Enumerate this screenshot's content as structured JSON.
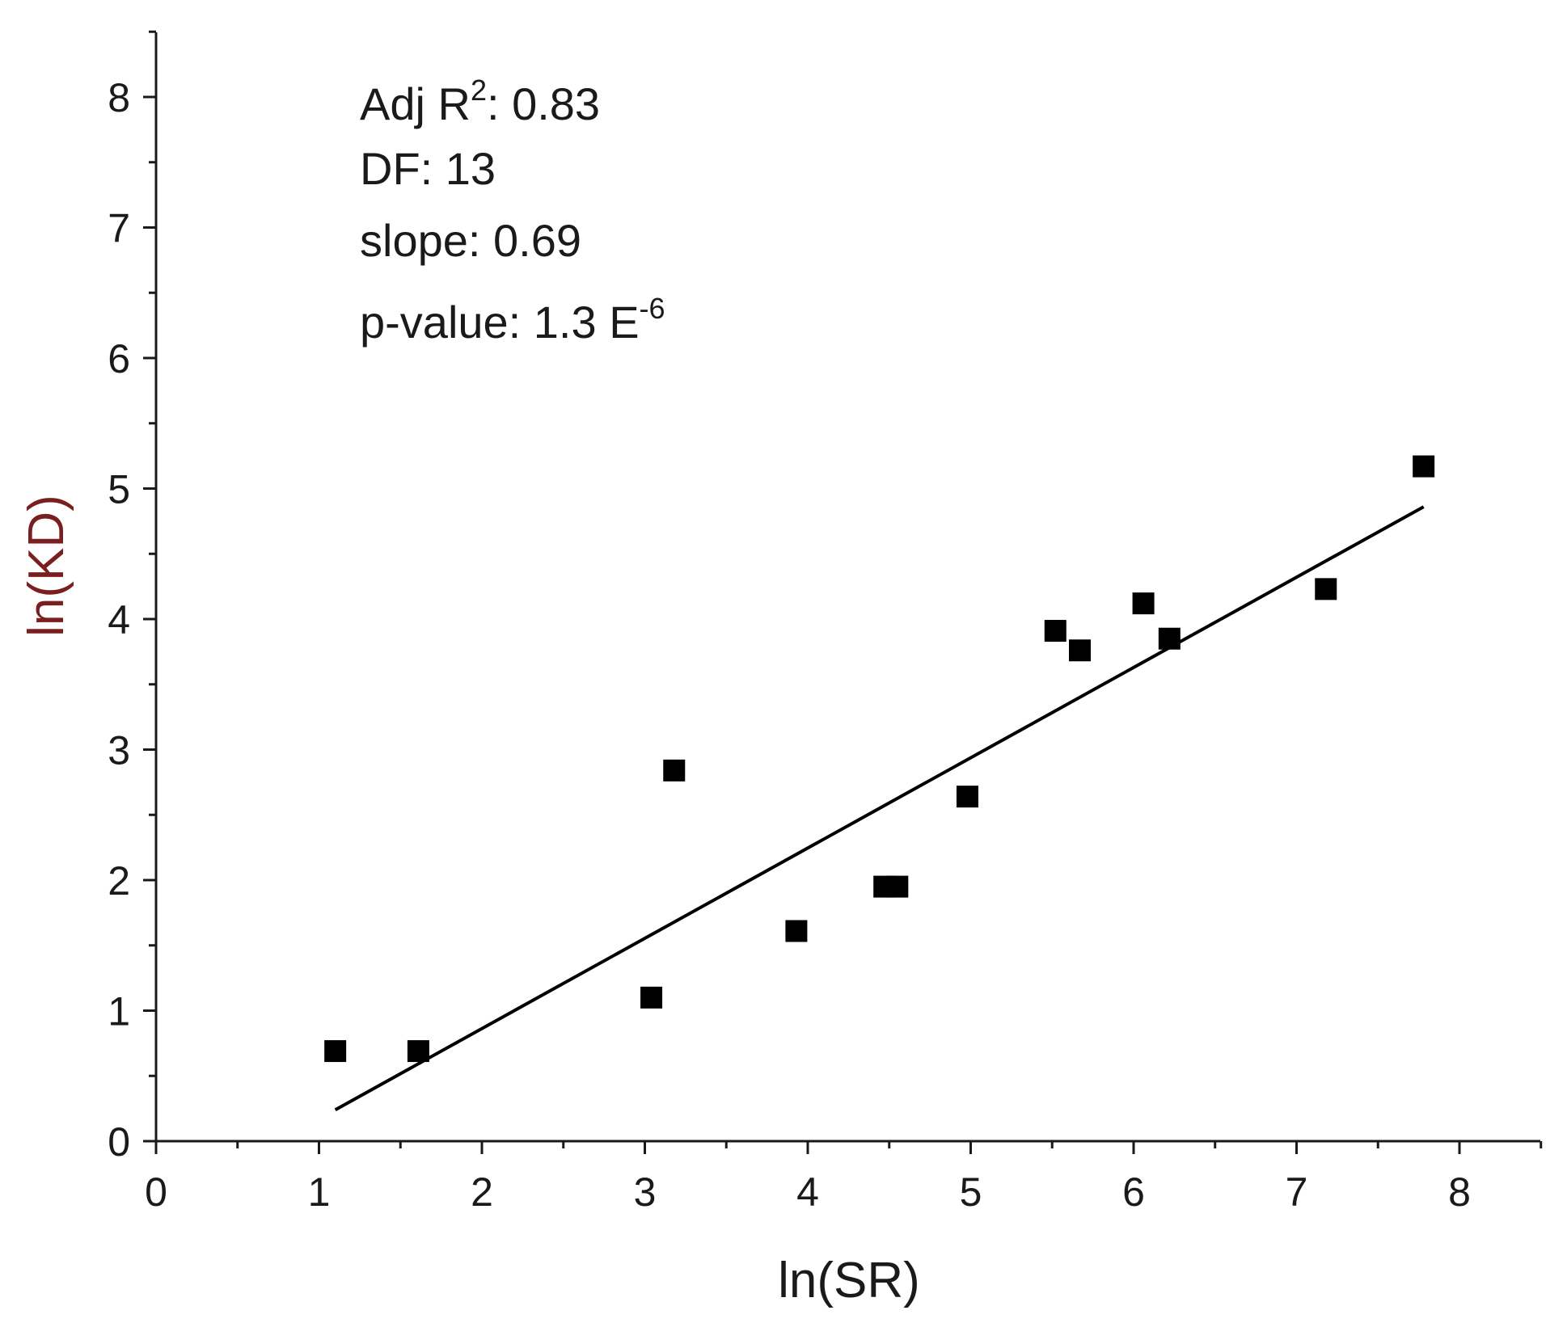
{
  "chart_data": {
    "type": "scatter",
    "title": "",
    "xlabel": "ln(SR)",
    "ylabel": "ln(KD)",
    "xlim": [
      0,
      8.5
    ],
    "ylim": [
      0,
      8.5
    ],
    "x_ticks": [
      0,
      1,
      2,
      3,
      4,
      5,
      6,
      7,
      8
    ],
    "y_ticks": [
      0,
      1,
      2,
      3,
      4,
      5,
      6,
      7,
      8
    ],
    "x_tick_labels": [
      "0",
      "1",
      "2",
      "3",
      "4",
      "5",
      "6",
      "7",
      "8"
    ],
    "y_tick_labels": [
      "0",
      "1",
      "2",
      "3",
      "4",
      "5",
      "6",
      "7",
      "8"
    ],
    "grid": false,
    "marker": "square",
    "series": [
      {
        "name": "data",
        "points": [
          {
            "x": 1.1,
            "y": 0.69
          },
          {
            "x": 1.61,
            "y": 0.69
          },
          {
            "x": 3.04,
            "y": 1.1
          },
          {
            "x": 3.18,
            "y": 2.84
          },
          {
            "x": 3.93,
            "y": 1.61
          },
          {
            "x": 4.47,
            "y": 1.95
          },
          {
            "x": 4.55,
            "y": 1.95
          },
          {
            "x": 4.98,
            "y": 2.64
          },
          {
            "x": 5.52,
            "y": 3.91
          },
          {
            "x": 5.67,
            "y": 3.76
          },
          {
            "x": 6.06,
            "y": 4.12
          },
          {
            "x": 6.22,
            "y": 3.85
          },
          {
            "x": 7.18,
            "y": 4.23
          },
          {
            "x": 7.78,
            "y": 5.17
          }
        ]
      }
    ],
    "fit_line": {
      "x_start": 1.1,
      "y_start": 0.24,
      "x_end": 7.78,
      "y_end": 4.86
    },
    "annotations": {
      "adj_r2_label": "Adj R",
      "adj_r2_sup": "2",
      "adj_r2_value": ": 0.83",
      "df": "DF: 13",
      "slope": "slope: 0.69",
      "pvalue_label": "p-value: 1.3 E",
      "pvalue_sup": "-6"
    },
    "colors": {
      "axes": "#1a1a1a",
      "markers": "#000000",
      "ylabel": "#7a1f1f",
      "xlabel": "#1a1a1a"
    }
  }
}
